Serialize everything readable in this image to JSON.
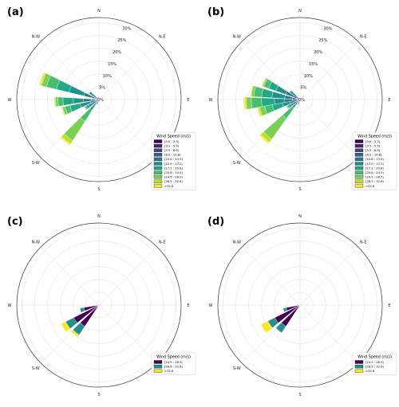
{
  "chart_data": [
    {
      "type": "windrose",
      "panel_label": "(a)",
      "directions": [
        "N",
        "N-E",
        "E",
        "S-E",
        "S",
        "S-W",
        "W",
        "N-W"
      ],
      "radial_ticks": [
        "5%",
        "10%",
        "15%",
        "20%",
        "25%",
        "30%"
      ],
      "radial_max": 32,
      "legend_title": "Wind Speed (m/s)",
      "legend_bins": [
        "[0.0 : 3.3)",
        "[3.3 : 5.5)",
        "[5.5 : 8.0)",
        "[8.0 : 10.8)",
        "[10.8 : 13.9)",
        "[13.9 : 17.2)",
        "[17.2 : 20.8)",
        "[20.8 : 24.5)",
        "[24.5 : 28.5)",
        "[28.5 : 32.6)",
        ">32.6"
      ],
      "bin_colors": [
        "#440154",
        "#482475",
        "#414487",
        "#355f8d",
        "#2a788e",
        "#21918c",
        "#22a884",
        "#44bf70",
        "#7ad151",
        "#bddf26",
        "#fde725"
      ],
      "sectors": [
        {
          "direction_deg": 219,
          "bin_pct": [
            0,
            0,
            0,
            0,
            0,
            1,
            4,
            5,
            9,
            1.5,
            0.6
          ]
        },
        {
          "direction_deg": 252,
          "bin_pct": [
            0,
            0,
            0.5,
            1,
            2,
            4,
            4,
            2,
            1,
            0.3,
            0.2
          ]
        },
        {
          "direction_deg": 267,
          "bin_pct": [
            0,
            0.5,
            1,
            1.5,
            3,
            4,
            4,
            2,
            1,
            0.3,
            0.2
          ]
        },
        {
          "direction_deg": 290,
          "bin_pct": [
            0,
            0.5,
            1,
            1.5,
            3,
            6,
            5,
            4,
            2,
            0.5,
            0.5
          ]
        },
        {
          "direction_deg": 307,
          "bin_pct": [
            0,
            0.5,
            1,
            1,
            1,
            1,
            0,
            0,
            0,
            0,
            0
          ]
        },
        {
          "direction_deg": 237,
          "bin_pct": [
            0,
            0.5,
            1,
            1.5,
            1.5,
            1,
            0.5,
            0.3,
            0.2,
            0,
            0
          ]
        },
        {
          "direction_deg": 200,
          "bin_pct": [
            0,
            0.5,
            1,
            0.5,
            0,
            0,
            0,
            0,
            0,
            0,
            0
          ]
        },
        {
          "direction_deg": 330,
          "bin_pct": [
            0,
            0.5,
            0.5,
            0,
            0,
            0,
            0,
            0,
            0,
            0,
            0
          ]
        },
        {
          "direction_deg": 90,
          "bin_pct": [
            0.2,
            0,
            0,
            0,
            0,
            0,
            0,
            0,
            0,
            0,
            0
          ]
        }
      ]
    },
    {
      "type": "windrose",
      "panel_label": "(b)",
      "directions": [
        "N",
        "N-E",
        "E",
        "S-E",
        "S",
        "S-W",
        "W",
        "N-W"
      ],
      "radial_ticks": [
        "5%",
        "10%",
        "15%",
        "20%",
        "25%",
        "30%"
      ],
      "radial_max": 32,
      "legend_title": "Wind Speed (m/s)",
      "legend_bins": [
        "[0.0 : 3.3)",
        "[3.3 : 5.5)",
        "[5.5 : 8.0)",
        "[8.0 : 10.8)",
        "[10.8 : 13.9)",
        "[13.9 : 17.2)",
        "[17.2 : 20.8)",
        "[20.8 : 24.5)",
        "[24.5 : 28.5)",
        "[28.5 : 32.6)",
        ">32.6"
      ],
      "bin_colors": [
        "#440154",
        "#482475",
        "#414487",
        "#355f8d",
        "#2a788e",
        "#21918c",
        "#22a884",
        "#44bf70",
        "#7ad151",
        "#bddf26",
        "#fde725"
      ],
      "sectors": [
        {
          "direction_deg": 222,
          "bin_pct": [
            0,
            0,
            0,
            0,
            0,
            1,
            3,
            5,
            10,
            1.5,
            0.6
          ]
        },
        {
          "direction_deg": 253,
          "bin_pct": [
            0,
            0.5,
            0.5,
            1,
            2,
            3,
            4,
            3,
            2,
            0.5,
            0.5
          ]
        },
        {
          "direction_deg": 266,
          "bin_pct": [
            0,
            0.5,
            1,
            1.5,
            3,
            4,
            5,
            4,
            2,
            0.5,
            0.5
          ]
        },
        {
          "direction_deg": 280,
          "bin_pct": [
            0,
            0.5,
            1,
            1.5,
            3,
            5,
            4,
            3,
            1,
            0.3,
            0.2
          ]
        },
        {
          "direction_deg": 296,
          "bin_pct": [
            0,
            0.5,
            1,
            1.5,
            3,
            4,
            3,
            2,
            0.5,
            0.3,
            0.2
          ]
        },
        {
          "direction_deg": 310,
          "bin_pct": [
            0,
            0.5,
            1,
            1,
            1,
            1,
            0.5,
            0,
            0,
            0,
            0
          ]
        },
        {
          "direction_deg": 238,
          "bin_pct": [
            0,
            0.5,
            1,
            1.5,
            1,
            1,
            0.5,
            0.3,
            0.2,
            0,
            0
          ]
        },
        {
          "direction_deg": 200,
          "bin_pct": [
            0,
            0.5,
            1,
            0.5,
            0,
            0,
            0,
            0,
            0,
            0,
            0
          ]
        },
        {
          "direction_deg": 328,
          "bin_pct": [
            0,
            0.5,
            0.5,
            0,
            0,
            0,
            0,
            0,
            0,
            0,
            0
          ]
        }
      ]
    },
    {
      "type": "windrose",
      "panel_label": "(c)",
      "directions": [
        "N",
        "N-E",
        "E",
        "S-E",
        "S",
        "S-W",
        "W",
        "N-W"
      ],
      "radial_ticks": [],
      "radial_max": 32,
      "legend_title": "Wind Speed (m/s)",
      "legend_bins": [
        "[24.5 : 28.5)",
        "[28.5 : 32.6)",
        ">32.6"
      ],
      "bin_colors": [
        "#440154",
        "#21918c",
        "#fde725"
      ],
      "sectors": [
        {
          "direction_deg": 220,
          "bin_pct": [
            10,
            4,
            1
          ]
        },
        {
          "direction_deg": 237,
          "bin_pct": [
            11,
            3.5,
            2
          ]
        },
        {
          "direction_deg": 254,
          "bin_pct": [
            6,
            1.5,
            0
          ]
        },
        {
          "direction_deg": 76,
          "bin_pct": [
            0.8,
            0,
            0
          ]
        },
        {
          "direction_deg": 90,
          "bin_pct": [
            1,
            0,
            0
          ]
        }
      ]
    },
    {
      "type": "windrose",
      "panel_label": "(d)",
      "directions": [
        "N",
        "N-E",
        "E",
        "S-E",
        "S",
        "S-W",
        "W",
        "N-W"
      ],
      "radial_ticks": [],
      "radial_max": 32,
      "legend_title": "Wind Speed (m/s)",
      "legend_bins": [
        "[24.5 : 28.5)",
        "[28.5 : 32.6)",
        ">32.6"
      ],
      "bin_colors": [
        "#440154",
        "#21918c",
        "#fde725"
      ],
      "sectors": [
        {
          "direction_deg": 220,
          "bin_pct": [
            10,
            3,
            0
          ]
        },
        {
          "direction_deg": 237,
          "bin_pct": [
            11,
            3,
            3
          ]
        },
        {
          "direction_deg": 253,
          "bin_pct": [
            5.5,
            1.2,
            0
          ]
        },
        {
          "direction_deg": 80,
          "bin_pct": [
            1,
            0,
            0
          ]
        },
        {
          "direction_deg": 270,
          "bin_pct": [
            1.2,
            0,
            0
          ]
        }
      ]
    }
  ]
}
